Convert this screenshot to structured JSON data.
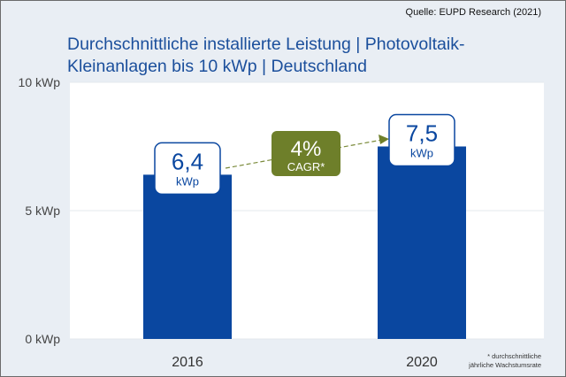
{
  "source": "Quelle: EUPD Research (2021)",
  "footnote": [
    "* durchschnittliche",
    "jährliche Wachstumsrate"
  ],
  "colors": {
    "bar": "#0a47a0",
    "title": "#1b4f9c",
    "cagr_box": "#6e7f2a",
    "background": "#e9eef4"
  },
  "chart_data": {
    "type": "bar",
    "title": [
      "Durchschnittliche installierte Leistung | Photovoltaik-",
      "Kleinanlagen bis 10 kWp | Deutschland"
    ],
    "categories": [
      "2016",
      "2020"
    ],
    "values": [
      6.4,
      7.5
    ],
    "value_labels": [
      {
        "value": "6,4",
        "unit": "kWp"
      },
      {
        "value": "7,5",
        "unit": "kWp"
      }
    ],
    "ylim": [
      0,
      10
    ],
    "yticks": [
      0,
      5,
      10
    ],
    "ytick_labels": [
      "0 kWp",
      "5 kWp",
      "10 kWp"
    ],
    "grid": true,
    "annotation": {
      "value": "4%",
      "label": "CAGR*"
    }
  }
}
